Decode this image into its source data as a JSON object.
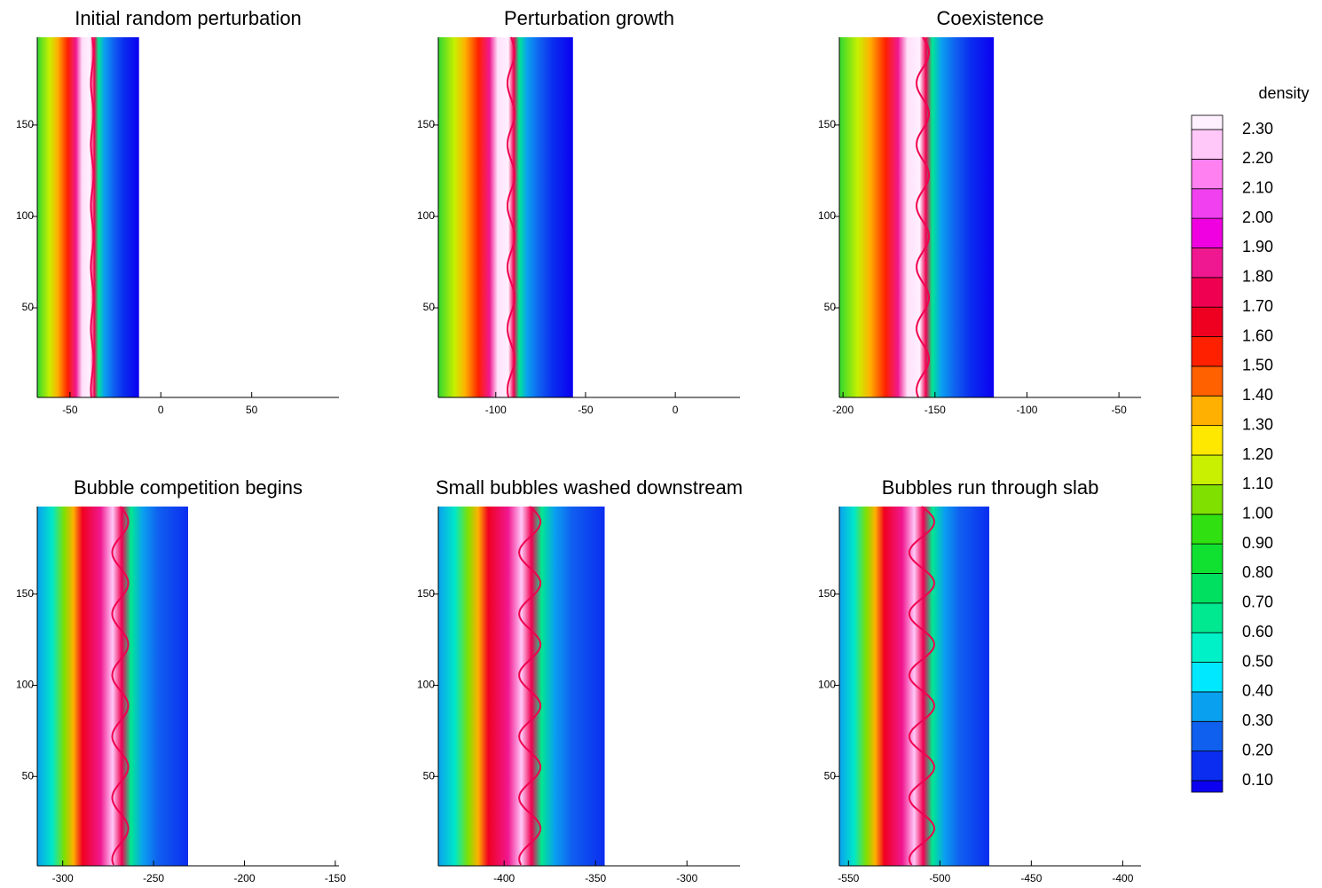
{
  "chart_data": [
    {
      "type": "contour",
      "title": "Initial random perturbation",
      "xlim": [
        -68,
        98
      ],
      "ylim": [
        1,
        198
      ],
      "field_xlim": [
        -68,
        -12
      ],
      "xticks": [
        -50,
        0,
        50
      ],
      "yticks": [
        50,
        100,
        150
      ]
    },
    {
      "type": "contour",
      "title": "Perturbation growth",
      "xlim": [
        -132,
        36
      ],
      "ylim": [
        1,
        198
      ],
      "field_xlim": [
        -132,
        -57
      ],
      "xticks": [
        -100,
        -50,
        0
      ],
      "yticks": [
        50,
        100,
        150
      ]
    },
    {
      "type": "contour",
      "title": "Coexistence",
      "xlim": [
        -202,
        -38
      ],
      "ylim": [
        1,
        198
      ],
      "field_xlim": [
        -202,
        -118
      ],
      "xticks": [
        -200,
        -150,
        -100,
        -50
      ],
      "yticks": [
        50,
        100,
        150
      ]
    },
    {
      "type": "contour",
      "title": "Bubble competition begins",
      "xlim": [
        -314,
        -148
      ],
      "ylim": [
        1,
        198
      ],
      "field_xlim": [
        -314,
        -231
      ],
      "xticks": [
        -300,
        -250,
        -200,
        -150
      ],
      "yticks": [
        50,
        100,
        150
      ]
    },
    {
      "type": "contour",
      "title": "Small bubbles washed downstream",
      "xlim": [
        -436,
        -271
      ],
      "ylim": [
        1,
        198
      ],
      "field_xlim": [
        -436,
        -345
      ],
      "xticks": [
        -400,
        -350,
        -300
      ],
      "yticks": [
        50,
        100,
        150
      ]
    },
    {
      "type": "contour",
      "title": "Bubbles run through slab",
      "xlim": [
        -555,
        -390
      ],
      "ylim": [
        1,
        198
      ],
      "field_xlim": [
        -555,
        -473
      ],
      "xticks": [
        -550,
        -500,
        -450,
        -400
      ],
      "yticks": [
        50,
        100,
        150
      ]
    }
  ],
  "colorbar": {
    "title": "density",
    "levels": [
      {
        "value": 0.1,
        "label": "0.10"
      },
      {
        "value": 0.2,
        "label": "0.20"
      },
      {
        "value": 0.3,
        "label": "0.30"
      },
      {
        "value": 0.4,
        "label": "0.40"
      },
      {
        "value": 0.5,
        "label": "0.50"
      },
      {
        "value": 0.6,
        "label": "0.60"
      },
      {
        "value": 0.7,
        "label": "0.70"
      },
      {
        "value": 0.8,
        "label": "0.80"
      },
      {
        "value": 0.9,
        "label": "0.90"
      },
      {
        "value": 1.0,
        "label": "1.00"
      },
      {
        "value": 1.1,
        "label": "1.10"
      },
      {
        "value": 1.2,
        "label": "1.20"
      },
      {
        "value": 1.3,
        "label": "1.30"
      },
      {
        "value": 1.4,
        "label": "1.40"
      },
      {
        "value": 1.5,
        "label": "1.50"
      },
      {
        "value": 1.6,
        "label": "1.60"
      },
      {
        "value": 1.7,
        "label": "1.70"
      },
      {
        "value": 1.8,
        "label": "1.80"
      },
      {
        "value": 1.9,
        "label": "1.90"
      },
      {
        "value": 2.0,
        "label": "2.00"
      },
      {
        "value": 2.1,
        "label": "2.10"
      },
      {
        "value": 2.2,
        "label": "2.20"
      },
      {
        "value": 2.3,
        "label": "2.30"
      }
    ],
    "colors": [
      "#0b00f0",
      "#0a2df0",
      "#1060f0",
      "#0aa0f0",
      "#00e8ff",
      "#00f0c8",
      "#00e890",
      "#00e060",
      "#10e030",
      "#30e010",
      "#80e000",
      "#c8f000",
      "#ffe800",
      "#ffb000",
      "#ff6000",
      "#ff2000",
      "#f00020",
      "#f00050",
      "#f01890",
      "#f000e0",
      "#f040f0",
      "#ff80f0",
      "#ffc8f8",
      "#fff0ff"
    ]
  }
}
